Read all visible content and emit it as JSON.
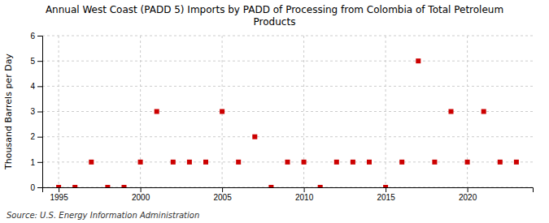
{
  "chart_data": {
    "type": "scatter",
    "title": "Annual West Coast (PADD 5) Imports by PADD of Processing from Colombia of Total Petroleum\nProducts",
    "ylabel": "Thousand Barrels per Day",
    "annotations": [
      "Source: U.S. Energy Information Administration"
    ],
    "x": [
      1995,
      1996,
      1997,
      1998,
      1999,
      2000,
      2001,
      2002,
      2003,
      2004,
      2005,
      2006,
      2007,
      2008,
      2009,
      2010,
      2011,
      2012,
      2013,
      2014,
      2015,
      2016,
      2017,
      2018,
      2019,
      2020,
      2021,
      2022,
      2023
    ],
    "values": [
      0,
      0,
      1,
      0,
      0,
      1,
      3,
      1,
      1,
      1,
      3,
      1,
      2,
      0,
      1,
      1,
      0,
      1,
      1,
      1,
      0,
      1,
      5,
      1,
      3,
      1,
      3,
      1,
      1
    ],
    "xlim": [
      1994,
      2024
    ],
    "ylim": [
      0,
      6
    ],
    "xticks": [
      1995,
      2000,
      2005,
      2010,
      2015,
      2020
    ],
    "yticks": [
      0,
      1,
      2,
      3,
      4,
      5,
      6
    ],
    "color": "#cc0000",
    "marker": "square",
    "grid": true
  }
}
